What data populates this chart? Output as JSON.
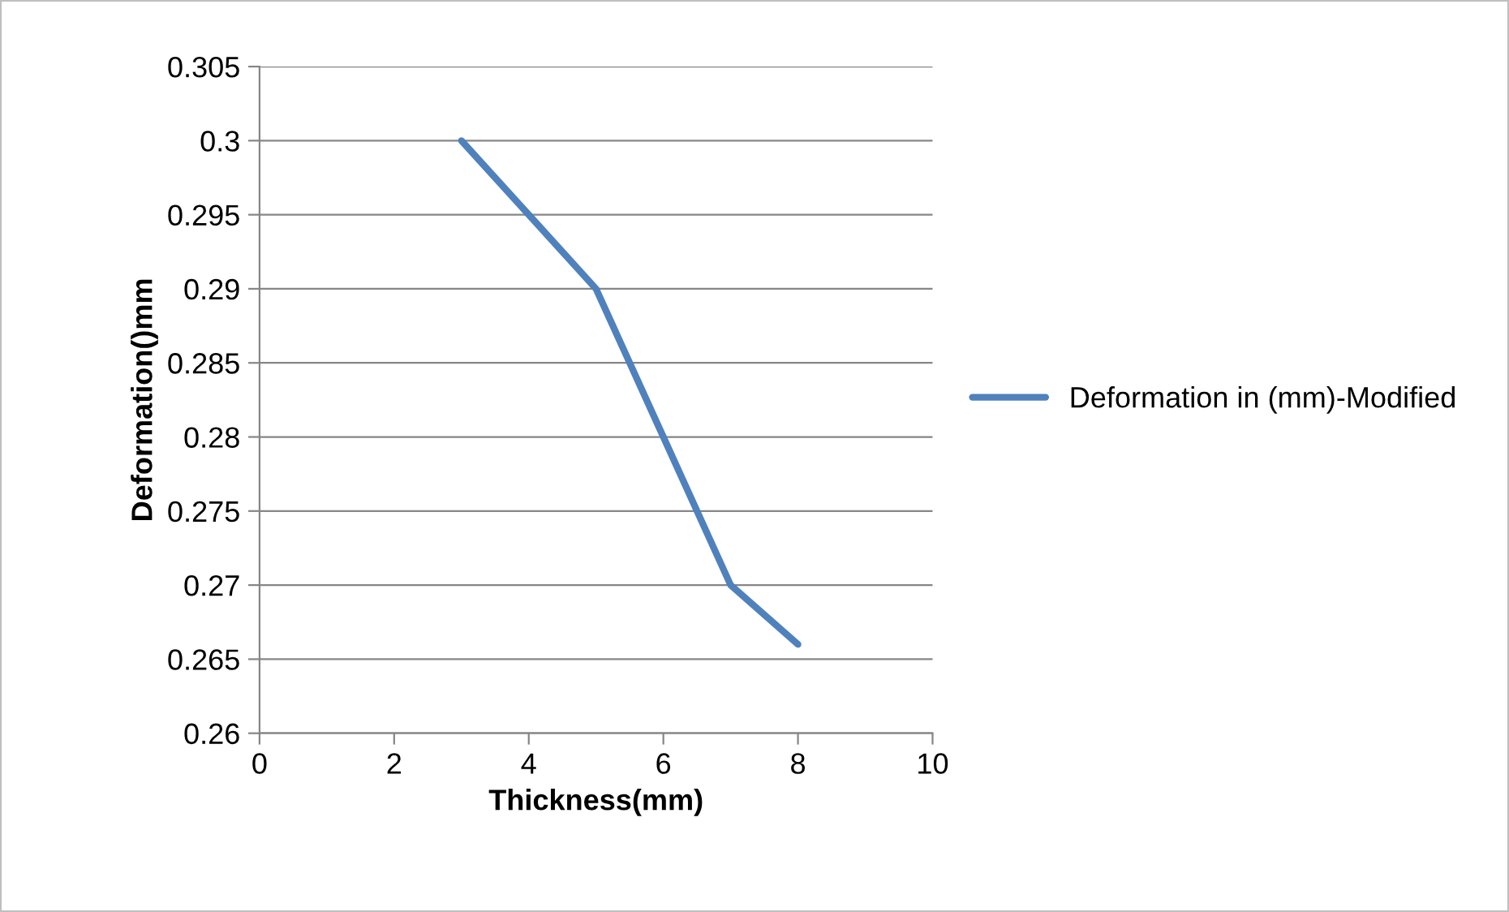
{
  "chart_data": {
    "type": "line",
    "xlabel": "Thickness(mm)",
    "ylabel": "Deformation()mm",
    "x": [
      3,
      4,
      5,
      6,
      7,
      8
    ],
    "series": [
      {
        "name": "Deformation in (mm)-Modified",
        "color": "#4f81bd",
        "values": [
          0.3,
          0.295,
          0.29,
          0.28,
          0.27,
          0.266
        ]
      }
    ],
    "xlim": [
      0,
      10
    ],
    "xticks": [
      0,
      2,
      4,
      6,
      8,
      10
    ],
    "ylim": [
      0.26,
      0.305
    ],
    "yticks": [
      0.26,
      0.265,
      0.27,
      0.275,
      0.28,
      0.285,
      0.29,
      0.295,
      0.3,
      0.305
    ],
    "grid": "y",
    "legend": "right",
    "marker": "none",
    "line_style": "solid"
  }
}
